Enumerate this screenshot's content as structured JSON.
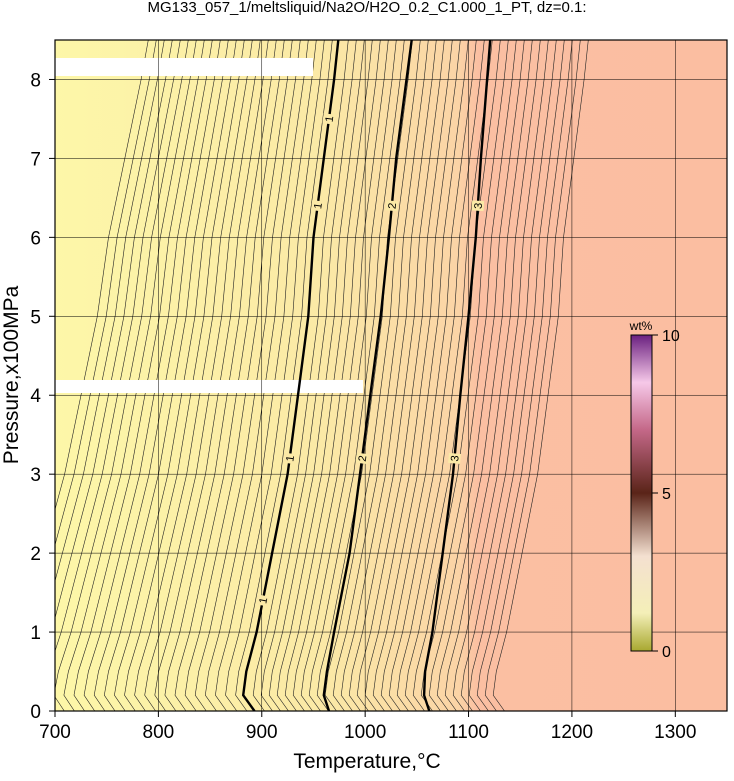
{
  "chart_data": {
    "type": "contour",
    "title": "MG133_057_1/meltsliquid/Na2O/H2O_0.2_C1.000_1_PT, dz=0.1:",
    "x_label": "Temperature,°C",
    "y_label": "Pressure,x100MPa",
    "xlim": [
      700,
      1350
    ],
    "xticks": [
      700,
      800,
      900,
      1000,
      1100,
      1200,
      1300
    ],
    "ylim": [
      0,
      8.5
    ],
    "yticks": [
      0,
      1,
      2,
      3,
      4,
      5,
      6,
      7,
      8
    ],
    "grid": true,
    "contours": [
      {
        "level": 1,
        "x": [
          893,
          882,
          885,
          895,
          910,
          925,
          935,
          945,
          950,
          960,
          970,
          974
        ],
        "y": [
          0,
          0.2,
          0.5,
          1,
          2,
          3,
          4,
          5,
          6,
          7,
          8,
          8.5
        ]
      },
      {
        "level": 2,
        "x": [
          965,
          960,
          963,
          970,
          985,
          995,
          1005,
          1015,
          1023,
          1030,
          1040,
          1045
        ],
        "y": [
          0,
          0.2,
          0.5,
          1,
          2,
          3,
          4,
          5,
          6,
          7,
          8,
          8.5
        ]
      },
      {
        "level": 3,
        "x": [
          1062,
          1057,
          1058,
          1065,
          1075,
          1085,
          1092,
          1100,
          1107,
          1112,
          1118,
          1121
        ],
        "y": [
          0,
          0.2,
          0.5,
          1,
          2,
          3,
          4,
          5,
          6,
          7,
          8,
          8.5
        ]
      }
    ],
    "colorbar": {
      "label": "wt%",
      "lim": [
        0,
        10
      ],
      "ticks": [
        0,
        5,
        10
      ]
    }
  }
}
